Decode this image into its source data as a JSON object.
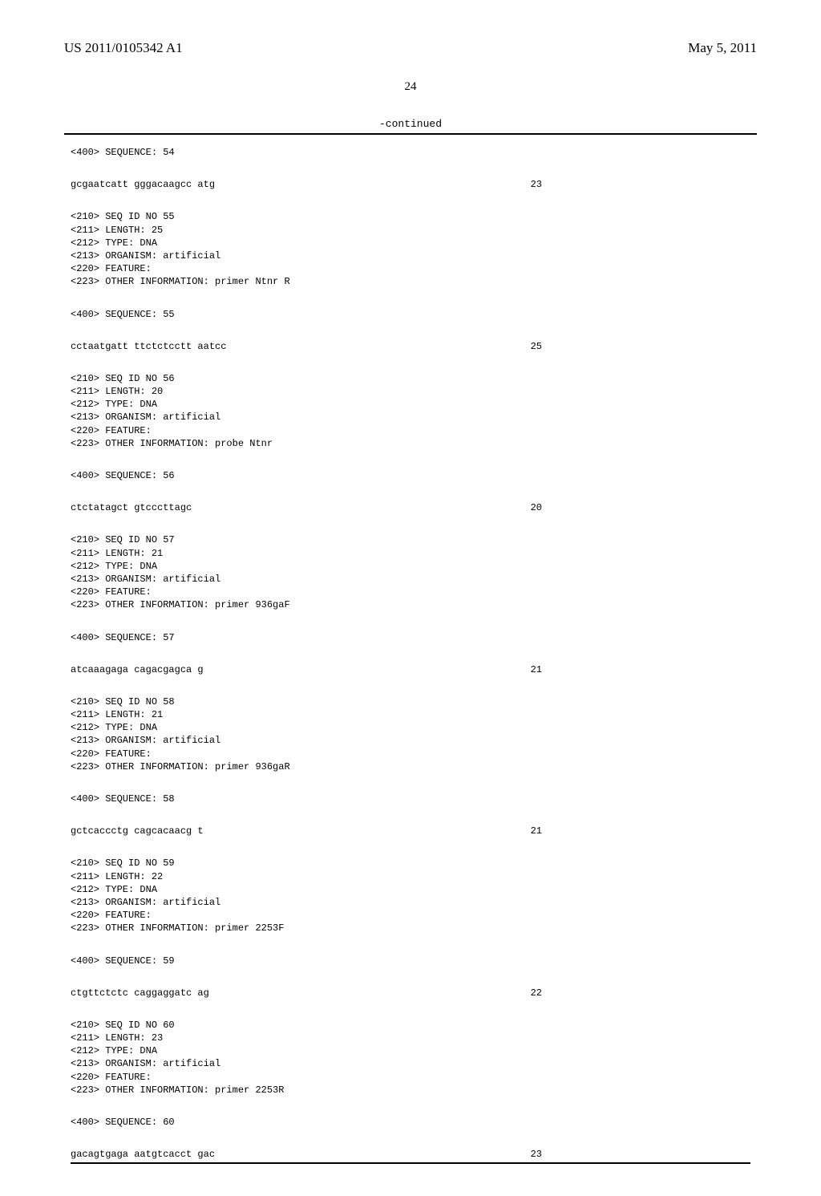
{
  "header": {
    "left": "US 2011/0105342 A1",
    "right": "May 5, 2011"
  },
  "page_number": "24",
  "continued_label": "-continued",
  "sequences": [
    {
      "header": "<400> SEQUENCE: 54",
      "sequence": "gcgaatcatt gggacaagcc atg",
      "length_label": "23",
      "meta": null
    },
    {
      "meta": "<210> SEQ ID NO 55\n<211> LENGTH: 25\n<212> TYPE: DNA\n<213> ORGANISM: artificial\n<220> FEATURE:\n<223> OTHER INFORMATION: primer Ntnr R",
      "header": "<400> SEQUENCE: 55",
      "sequence": "cctaatgatt ttctctcctt aatcc",
      "length_label": "25"
    },
    {
      "meta": "<210> SEQ ID NO 56\n<211> LENGTH: 20\n<212> TYPE: DNA\n<213> ORGANISM: artificial\n<220> FEATURE:\n<223> OTHER INFORMATION: probe Ntnr",
      "header": "<400> SEQUENCE: 56",
      "sequence": "ctctatagct gtcccttagc",
      "length_label": "20"
    },
    {
      "meta": "<210> SEQ ID NO 57\n<211> LENGTH: 21\n<212> TYPE: DNA\n<213> ORGANISM: artificial\n<220> FEATURE:\n<223> OTHER INFORMATION: primer 936gaF",
      "header": "<400> SEQUENCE: 57",
      "sequence": "atcaaagaga cagacgagca g",
      "length_label": "21"
    },
    {
      "meta": "<210> SEQ ID NO 58\n<211> LENGTH: 21\n<212> TYPE: DNA\n<213> ORGANISM: artificial\n<220> FEATURE:\n<223> OTHER INFORMATION: primer 936gaR",
      "header": "<400> SEQUENCE: 58",
      "sequence": "gctcaccctg cagcacaacg t",
      "length_label": "21"
    },
    {
      "meta": "<210> SEQ ID NO 59\n<211> LENGTH: 22\n<212> TYPE: DNA\n<213> ORGANISM: artificial\n<220> FEATURE:\n<223> OTHER INFORMATION: primer 2253F",
      "header": "<400> SEQUENCE: 59",
      "sequence": "ctgttctctc caggaggatc ag",
      "length_label": "22"
    },
    {
      "meta": "<210> SEQ ID NO 60\n<211> LENGTH: 23\n<212> TYPE: DNA\n<213> ORGANISM: artificial\n<220> FEATURE:\n<223> OTHER INFORMATION: primer 2253R",
      "header": "<400> SEQUENCE: 60",
      "sequence": "gacagtgaga aatgtcacct gac",
      "length_label": "23",
      "last": true
    }
  ]
}
